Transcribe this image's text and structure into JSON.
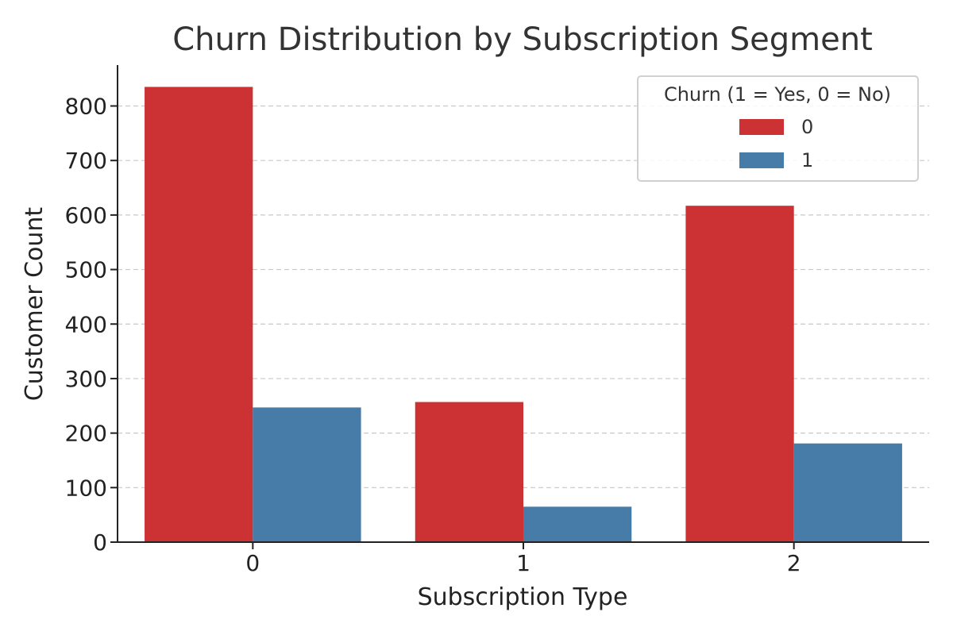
{
  "chart_data": {
    "type": "bar",
    "title": "Churn Distribution by Subscription Segment",
    "xlabel": "Subscription Type",
    "ylabel": "Customer Count",
    "categories": [
      "0",
      "1",
      "2"
    ],
    "series": [
      {
        "name": "0",
        "color": "#CC3234",
        "values": [
          835,
          257,
          617
        ]
      },
      {
        "name": "1",
        "color": "#477CA8",
        "values": [
          247,
          65,
          181
        ]
      }
    ],
    "ylim": [
      0,
      875
    ],
    "yticks": [
      0,
      100,
      200,
      300,
      400,
      500,
      600,
      700,
      800
    ],
    "grid": true,
    "grid_axis": "y",
    "legend": {
      "title": "Churn (1 = Yes, 0 = No)",
      "placement": "top-right"
    }
  }
}
